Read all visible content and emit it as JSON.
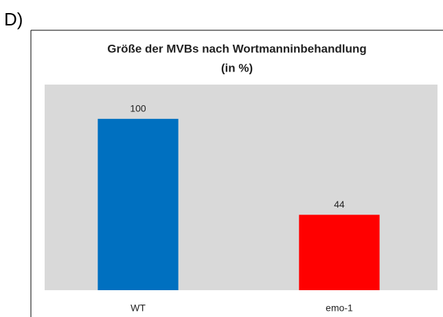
{
  "panel_label": "D)",
  "chart_data": {
    "type": "bar",
    "title": "Größe der MVBs nach Wortmanninbehandlung",
    "subtitle": "(in %)",
    "categories": [
      "WT",
      "emo-1"
    ],
    "values": [
      100,
      44
    ],
    "colors": [
      "#0070c0",
      "#ff0000"
    ],
    "ylim": [
      0,
      120
    ],
    "grid": false
  }
}
